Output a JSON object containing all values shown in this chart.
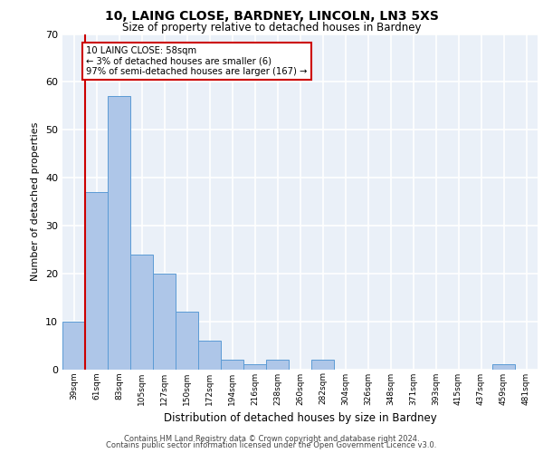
{
  "title_line1": "10, LAING CLOSE, BARDNEY, LINCOLN, LN3 5XS",
  "title_line2": "Size of property relative to detached houses in Bardney",
  "xlabel": "Distribution of detached houses by size in Bardney",
  "ylabel": "Number of detached properties",
  "categories": [
    "39sqm",
    "61sqm",
    "83sqm",
    "105sqm",
    "127sqm",
    "150sqm",
    "172sqm",
    "194sqm",
    "216sqm",
    "238sqm",
    "260sqm",
    "282sqm",
    "304sqm",
    "326sqm",
    "348sqm",
    "371sqm",
    "393sqm",
    "415sqm",
    "437sqm",
    "459sqm",
    "481sqm"
  ],
  "values": [
    10,
    37,
    57,
    24,
    20,
    12,
    6,
    2,
    1,
    2,
    0,
    2,
    0,
    0,
    0,
    0,
    0,
    0,
    0,
    1,
    0
  ],
  "bar_color": "#aec6e8",
  "bar_edge_color": "#5b9bd5",
  "annotation_text": "10 LAING CLOSE: 58sqm\n← 3% of detached houses are smaller (6)\n97% of semi-detached houses are larger (167) →",
  "annotation_box_color": "#ffffff",
  "annotation_box_edge_color": "#cc0000",
  "vline_color": "#cc0000",
  "ylim": [
    0,
    70
  ],
  "yticks": [
    0,
    10,
    20,
    30,
    40,
    50,
    60,
    70
  ],
  "background_color": "#eaf0f8",
  "grid_color": "#ffffff",
  "footer_line1": "Contains HM Land Registry data © Crown copyright and database right 2024.",
  "footer_line2": "Contains public sector information licensed under the Open Government Licence v3.0."
}
